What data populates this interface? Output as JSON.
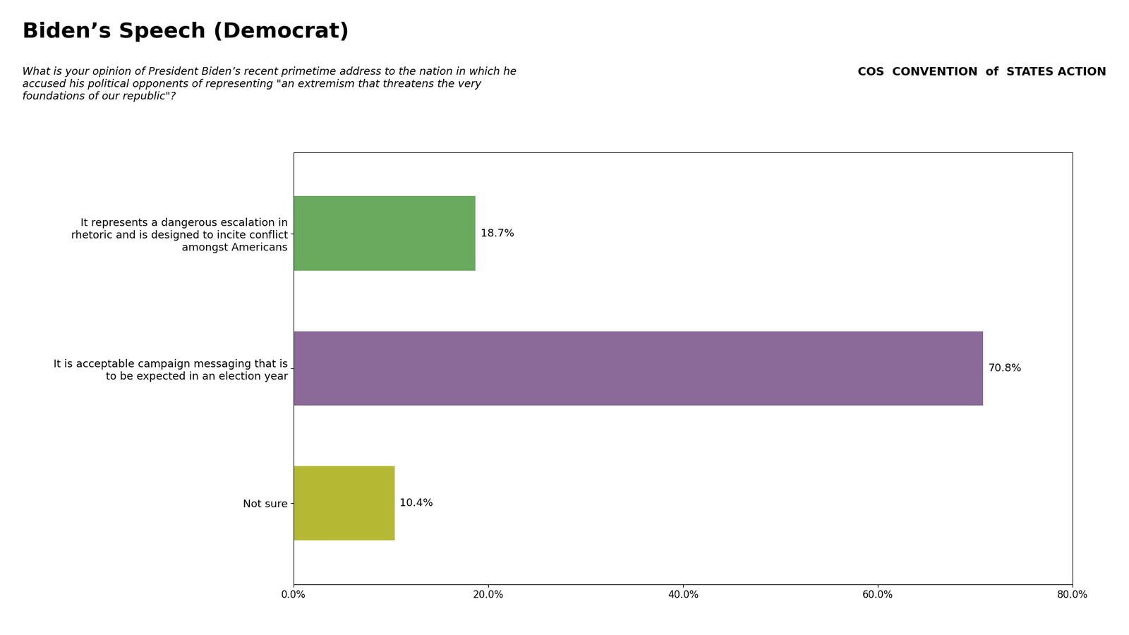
{
  "chart_data": {
    "type": "bar",
    "orientation": "horizontal",
    "title": "Biden’s Speech (Democrat)",
    "subtitle": "What is your opinion of President Biden’s recent primetime address to the nation in which he\naccused his political opponents of representing \"an extremism that threatens the very\nfoundations of our republic\"?",
    "annotations": [
      "COS",
      "CONVENTION",
      "of",
      "STATES ACTION"
    ],
    "categories": [
      "It represents a dangerous escalation in\nrhetoric and is designed to incite conflict\namongst Americans",
      "It is acceptable campaign messaging that is\nto be expected in an election year",
      "Not sure"
    ],
    "values": [
      18.7,
      70.8,
      10.4
    ],
    "value_labels": [
      "18.7%",
      "70.8%",
      "10.4%"
    ],
    "colors": [
      "#6aaa5e",
      "#8b6a9a",
      "#b5b832"
    ],
    "xlim": [
      0,
      80
    ],
    "xticks": [
      {
        "value": 0,
        "label": "0.0%"
      },
      {
        "value": 20,
        "label": "20.0%"
      },
      {
        "value": 40,
        "label": "40.0%"
      },
      {
        "value": 60,
        "label": "60.0%"
      },
      {
        "value": 80,
        "label": "80.0%"
      }
    ],
    "grid": false,
    "legend": false,
    "data_labels": true
  }
}
